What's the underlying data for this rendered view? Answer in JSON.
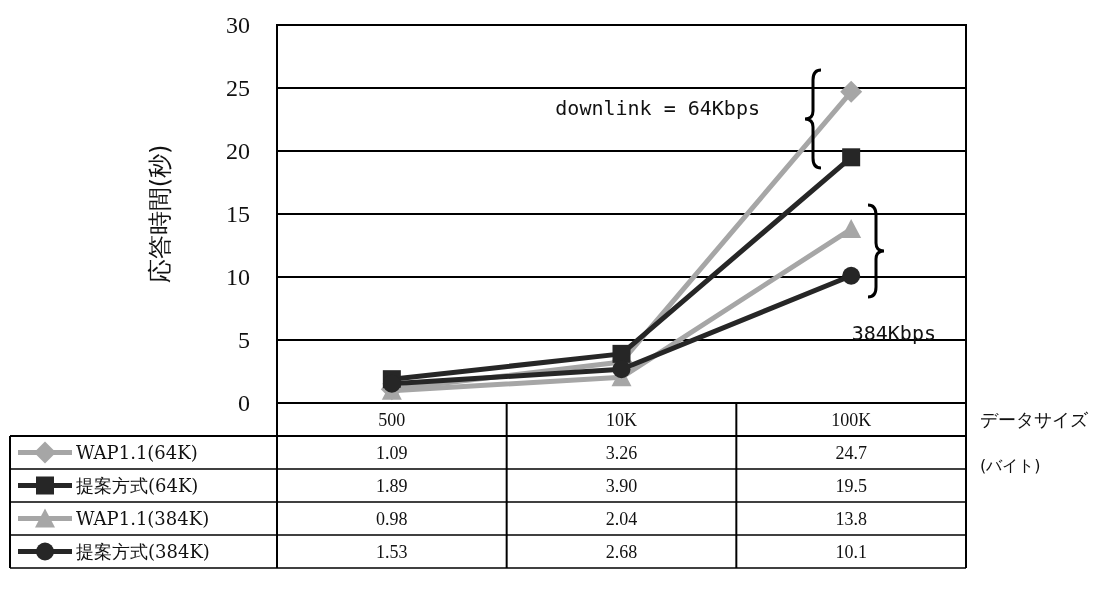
{
  "chart_data": {
    "type": "line",
    "ylabel": "応答時間(秒)",
    "xlabel": "データサイズ\n(バイト)",
    "categories": [
      "500",
      "10K",
      "100K"
    ],
    "ylim": [
      0,
      30
    ],
    "yticks": [
      0,
      5,
      10,
      15,
      20,
      25,
      30
    ],
    "grid": "y",
    "legend": "bottom left",
    "data_labels": true,
    "series": [
      {
        "name": "WAP1.1(64K)",
        "color": "#a6a6a6",
        "marker": "diamond",
        "values": [
          1.09,
          3.26,
          24.7
        ],
        "value_labels": [
          "1.09",
          "3.26",
          "24.7"
        ]
      },
      {
        "name": "提案方式(64K)",
        "color": "#262626",
        "marker": "square",
        "values": [
          1.89,
          3.9,
          19.5
        ],
        "value_labels": [
          "1.89",
          "3.90",
          "19.5"
        ]
      },
      {
        "name": "WAP1.1(384K)",
        "color": "#a6a6a6",
        "marker": "triangle",
        "values": [
          0.98,
          2.04,
          13.8
        ],
        "value_labels": [
          "0.98",
          "2.04",
          "13.8"
        ]
      },
      {
        "name": "提案方式(384K)",
        "color": "#262626",
        "marker": "circle",
        "values": [
          1.53,
          2.68,
          10.1
        ],
        "value_labels": [
          "1.53",
          "2.68",
          "10.1"
        ]
      }
    ],
    "annotations": [
      "downlink = 64Kbps",
      "384Kbps"
    ]
  }
}
